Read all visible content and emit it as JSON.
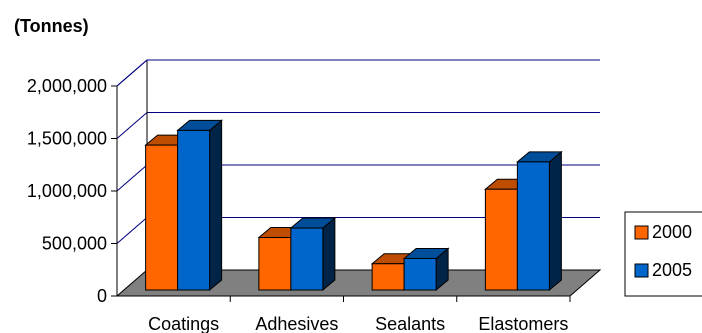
{
  "chart_data": {
    "type": "bar",
    "title": "",
    "unit_label": "(Tonnes)",
    "categories": [
      "Coatings",
      "Adhesives",
      "Sealants",
      "Elastomers"
    ],
    "series": [
      {
        "name": "2000",
        "values": [
          1380000,
          500000,
          250000,
          960000
        ],
        "color": "#FF6600"
      },
      {
        "name": "2005",
        "values": [
          1520000,
          590000,
          300000,
          1220000
        ],
        "color": "#0066CC"
      }
    ],
    "y_ticks": [
      "0",
      "500,000",
      "1,000,000",
      "1,500,000",
      "2,000,000"
    ],
    "ylim": [
      0,
      2000000
    ],
    "grid": true,
    "legend_position": "right",
    "style": "3d-clustered-column",
    "floor_color": "#808080"
  }
}
